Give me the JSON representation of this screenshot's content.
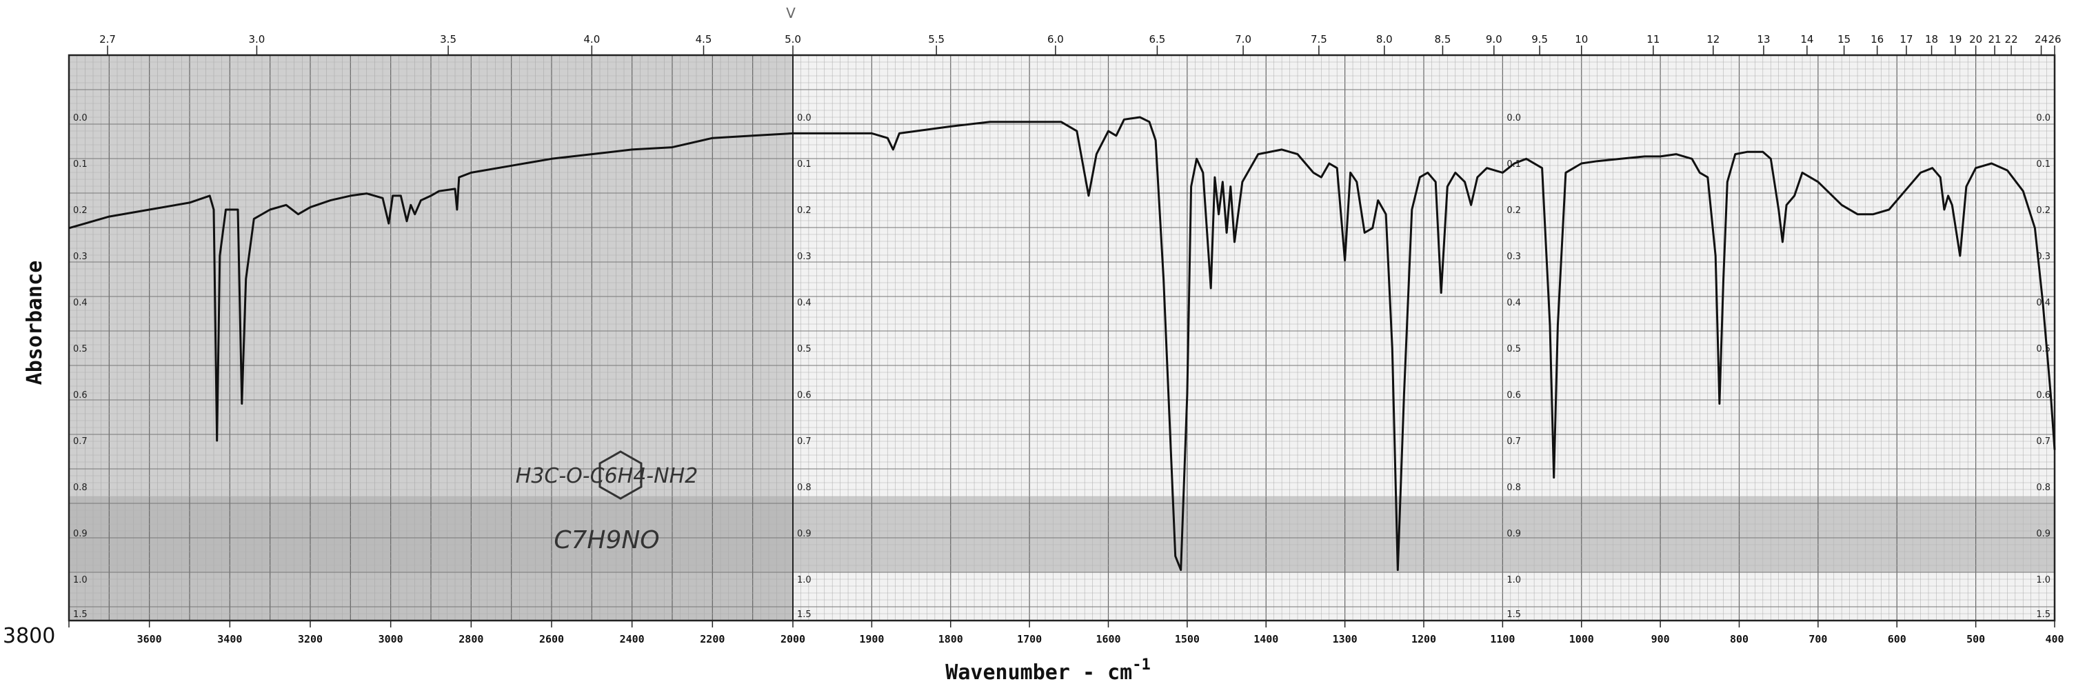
{
  "chart_data": {
    "type": "line",
    "xlabel": "Wavenumber - cm",
    "xlabel_sup": "-1",
    "ylabel": "Absorbance",
    "x_unit": "cm-1",
    "x_reversed": true,
    "x_segments": [
      {
        "from": 3800,
        "to": 2000
      },
      {
        "from": 2000,
        "to": 400
      }
    ],
    "bottom_ticks": [
      "3800",
      "3600",
      "3400",
      "3200",
      "3000",
      "2800",
      "2600",
      "2400",
      "2200",
      "2000",
      "1900",
      "1800",
      "1700",
      "1600",
      "1500",
      "1400",
      "1300",
      "1200",
      "1100",
      "1000",
      "900",
      "800",
      "700",
      "600",
      "500",
      "400"
    ],
    "top_ticks": [
      {
        "label": "2.7",
        "wn": 3704
      },
      {
        "label": "3.0",
        "wn": 3333
      },
      {
        "label": "3.5",
        "wn": 2857
      },
      {
        "label": "4.0",
        "wn": 2500
      },
      {
        "label": "4.5",
        "wn": 2222
      },
      {
        "label": "5.0",
        "wn": 2000
      },
      {
        "label": "5.5",
        "wn": 1818
      },
      {
        "label": "6.0",
        "wn": 1667
      },
      {
        "label": "6.5",
        "wn": 1538
      },
      {
        "label": "7.0",
        "wn": 1429
      },
      {
        "label": "7.5",
        "wn": 1333
      },
      {
        "label": "8.0",
        "wn": 1250
      },
      {
        "label": "8.5",
        "wn": 1176
      },
      {
        "label": "9.0",
        "wn": 1111
      },
      {
        "label": "9.5",
        "wn": 1053
      },
      {
        "label": "10",
        "wn": 1000
      },
      {
        "label": "11",
        "wn": 909
      },
      {
        "label": "12",
        "wn": 833
      },
      {
        "label": "13",
        "wn": 769
      },
      {
        "label": "14",
        "wn": 714
      },
      {
        "label": "15",
        "wn": 667
      },
      {
        "label": "16",
        "wn": 625
      },
      {
        "label": "17",
        "wn": 588
      },
      {
        "label": "18",
        "wn": 556
      },
      {
        "label": "19",
        "wn": 526
      },
      {
        "label": "20",
        "wn": 500
      },
      {
        "label": "21",
        "wn": 476
      },
      {
        "label": "22",
        "wn": 455
      },
      {
        "label": "24",
        "wn": 417
      },
      {
        "label": "26",
        "wn": 400
      }
    ],
    "absorbance_ticks": [
      "0.0",
      "0.1",
      "0.2",
      "0.3",
      "0.4",
      "0.5",
      "0.6",
      "0.7",
      "0.8",
      "0.9",
      "1.0",
      "1.5"
    ],
    "absorbance_scale_columns": [
      3800,
      2000,
      1100,
      400
    ],
    "structure_label": "H3C-O-C6H4-NH2",
    "formula_label": "C7H9NO",
    "top_mark": "V",
    "series": [
      {
        "points": [
          [
            3800,
            0.24
          ],
          [
            3700,
            0.215
          ],
          [
            3600,
            0.2
          ],
          [
            3500,
            0.185
          ],
          [
            3450,
            0.17
          ],
          [
            3440,
            0.2
          ],
          [
            3432,
            0.7
          ],
          [
            3425,
            0.3
          ],
          [
            3410,
            0.2
          ],
          [
            3380,
            0.2
          ],
          [
            3370,
            0.62
          ],
          [
            3360,
            0.35
          ],
          [
            3340,
            0.22
          ],
          [
            3300,
            0.2
          ],
          [
            3260,
            0.19
          ],
          [
            3230,
            0.21
          ],
          [
            3200,
            0.195
          ],
          [
            3150,
            0.18
          ],
          [
            3100,
            0.17
          ],
          [
            3060,
            0.165
          ],
          [
            3020,
            0.175
          ],
          [
            3005,
            0.23
          ],
          [
            2995,
            0.17
          ],
          [
            2975,
            0.17
          ],
          [
            2960,
            0.225
          ],
          [
            2950,
            0.19
          ],
          [
            2940,
            0.21
          ],
          [
            2925,
            0.18
          ],
          [
            2900,
            0.17
          ],
          [
            2880,
            0.16
          ],
          [
            2840,
            0.155
          ],
          [
            2835,
            0.2
          ],
          [
            2830,
            0.13
          ],
          [
            2800,
            0.12
          ],
          [
            2700,
            0.105
          ],
          [
            2600,
            0.09
          ],
          [
            2500,
            0.08
          ],
          [
            2400,
            0.07
          ],
          [
            2300,
            0.065
          ],
          [
            2200,
            0.045
          ],
          [
            2100,
            0.04
          ],
          [
            2000,
            0.035
          ],
          [
            1950,
            0.035
          ],
          [
            1900,
            0.035
          ],
          [
            1880,
            0.045
          ],
          [
            1873,
            0.07
          ],
          [
            1865,
            0.035
          ],
          [
            1800,
            0.02
          ],
          [
            1750,
            0.01
          ],
          [
            1700,
            0.01
          ],
          [
            1660,
            0.01
          ],
          [
            1640,
            0.03
          ],
          [
            1625,
            0.17
          ],
          [
            1615,
            0.08
          ],
          [
            1600,
            0.03
          ],
          [
            1590,
            0.04
          ],
          [
            1580,
            0.005
          ],
          [
            1560,
            0.0
          ],
          [
            1548,
            0.01
          ],
          [
            1540,
            0.05
          ],
          [
            1530,
            0.35
          ],
          [
            1515,
            0.95
          ],
          [
            1508,
            0.98
          ],
          [
            1500,
            0.6
          ],
          [
            1495,
            0.15
          ],
          [
            1488,
            0.09
          ],
          [
            1480,
            0.12
          ],
          [
            1470,
            0.37
          ],
          [
            1465,
            0.13
          ],
          [
            1460,
            0.21
          ],
          [
            1455,
            0.14
          ],
          [
            1450,
            0.25
          ],
          [
            1445,
            0.15
          ],
          [
            1440,
            0.27
          ],
          [
            1430,
            0.14
          ],
          [
            1410,
            0.08
          ],
          [
            1380,
            0.07
          ],
          [
            1360,
            0.08
          ],
          [
            1340,
            0.12
          ],
          [
            1330,
            0.13
          ],
          [
            1320,
            0.1
          ],
          [
            1310,
            0.11
          ],
          [
            1300,
            0.31
          ],
          [
            1293,
            0.12
          ],
          [
            1285,
            0.14
          ],
          [
            1275,
            0.25
          ],
          [
            1265,
            0.24
          ],
          [
            1258,
            0.18
          ],
          [
            1248,
            0.21
          ],
          [
            1240,
            0.5
          ],
          [
            1233,
            0.98
          ],
          [
            1225,
            0.6
          ],
          [
            1215,
            0.2
          ],
          [
            1205,
            0.13
          ],
          [
            1195,
            0.12
          ],
          [
            1185,
            0.14
          ],
          [
            1178,
            0.38
          ],
          [
            1170,
            0.15
          ],
          [
            1160,
            0.12
          ],
          [
            1148,
            0.14
          ],
          [
            1140,
            0.19
          ],
          [
            1132,
            0.13
          ],
          [
            1120,
            0.11
          ],
          [
            1100,
            0.12
          ],
          [
            1085,
            0.1
          ],
          [
            1070,
            0.09
          ],
          [
            1050,
            0.11
          ],
          [
            1040,
            0.45
          ],
          [
            1035,
            0.78
          ],
          [
            1030,
            0.45
          ],
          [
            1020,
            0.12
          ],
          [
            1000,
            0.1
          ],
          [
            980,
            0.095
          ],
          [
            950,
            0.09
          ],
          [
            920,
            0.085
          ],
          [
            900,
            0.085
          ],
          [
            880,
            0.08
          ],
          [
            860,
            0.09
          ],
          [
            850,
            0.12
          ],
          [
            840,
            0.13
          ],
          [
            830,
            0.3
          ],
          [
            825,
            0.62
          ],
          [
            820,
            0.35
          ],
          [
            815,
            0.14
          ],
          [
            805,
            0.08
          ],
          [
            790,
            0.075
          ],
          [
            770,
            0.075
          ],
          [
            760,
            0.09
          ],
          [
            750,
            0.2
          ],
          [
            745,
            0.27
          ],
          [
            740,
            0.19
          ],
          [
            730,
            0.17
          ],
          [
            720,
            0.12
          ],
          [
            700,
            0.14
          ],
          [
            670,
            0.19
          ],
          [
            650,
            0.21
          ],
          [
            630,
            0.21
          ],
          [
            610,
            0.2
          ],
          [
            590,
            0.16
          ],
          [
            570,
            0.12
          ],
          [
            555,
            0.11
          ],
          [
            545,
            0.13
          ],
          [
            540,
            0.2
          ],
          [
            535,
            0.17
          ],
          [
            530,
            0.19
          ],
          [
            520,
            0.3
          ],
          [
            512,
            0.15
          ],
          [
            500,
            0.11
          ],
          [
            480,
            0.1
          ],
          [
            460,
            0.115
          ],
          [
            440,
            0.16
          ],
          [
            425,
            0.24
          ],
          [
            415,
            0.4
          ],
          [
            405,
            0.6
          ],
          [
            400,
            0.72
          ]
        ]
      }
    ]
  }
}
